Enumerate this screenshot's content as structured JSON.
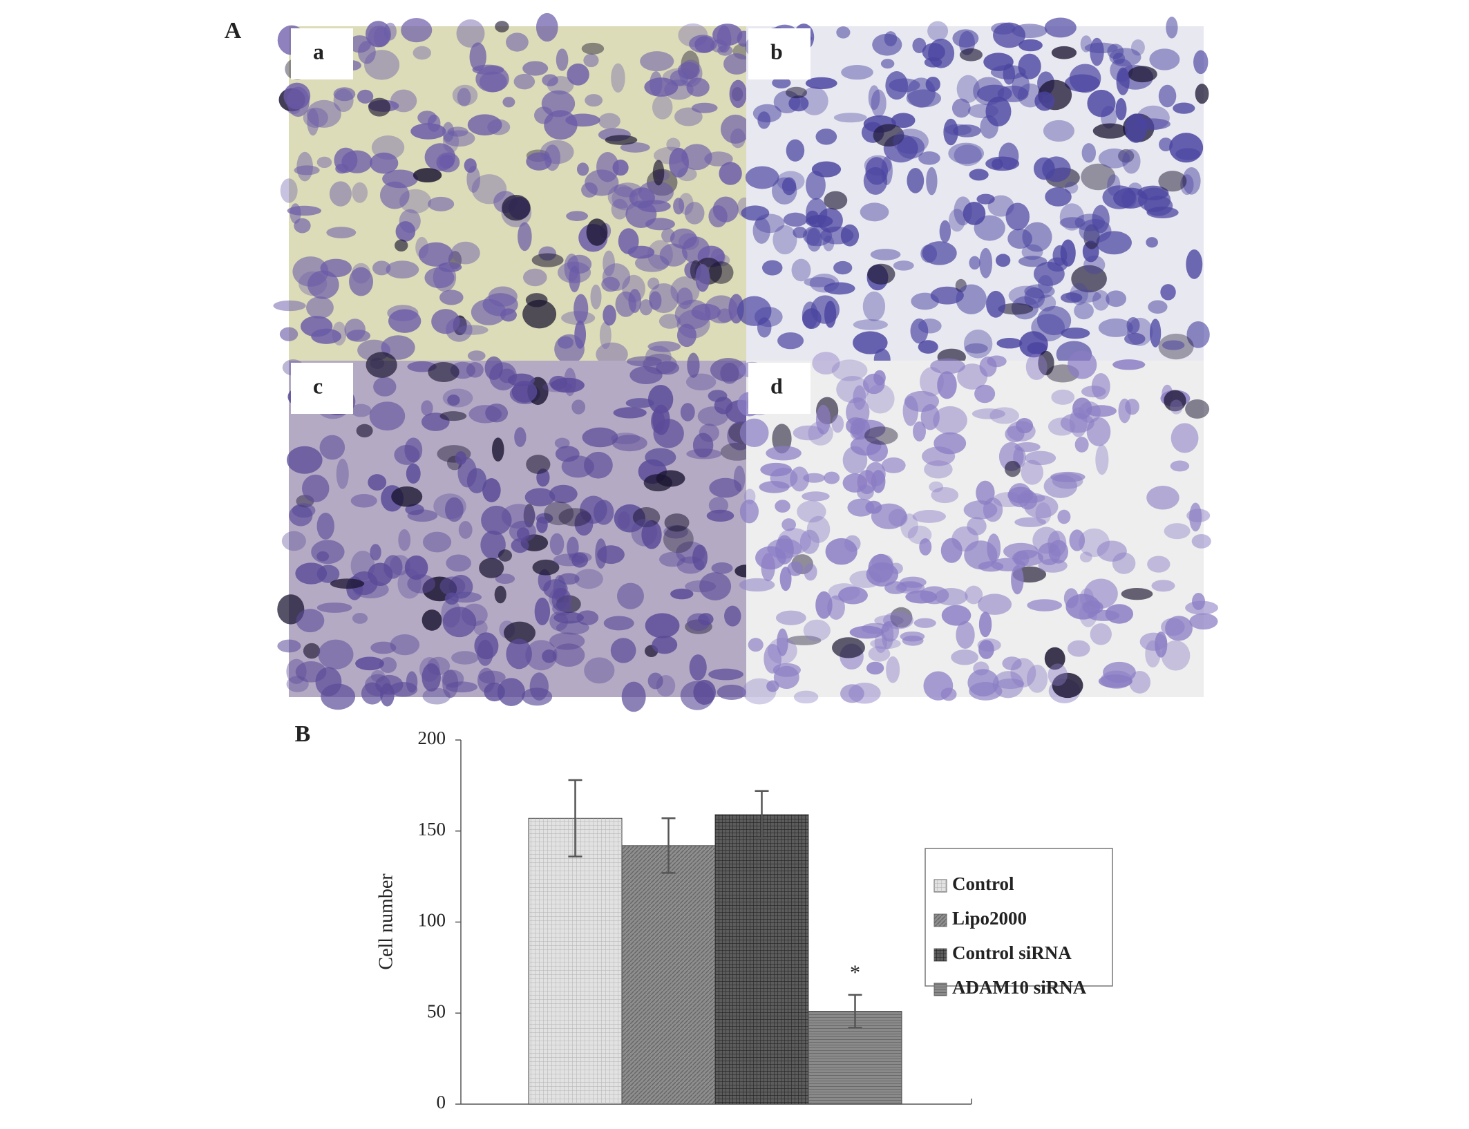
{
  "panels": {
    "A": "A",
    "B": "B",
    "images": [
      "a",
      "b",
      "c",
      "d"
    ]
  },
  "chart_data": {
    "type": "bar",
    "ylabel": "Cell number",
    "categories": [
      null
    ],
    "series": [
      {
        "name": "Control",
        "color": "#e2e2e2",
        "values": [
          157
        ],
        "errors": [
          21
        ]
      },
      {
        "name": "Lipo2000",
        "color": "#8e8e8e",
        "values": [
          142
        ],
        "errors": [
          15
        ]
      },
      {
        "name": "Control siRNA",
        "color": "#5c5c5c",
        "values": [
          159
        ],
        "errors": [
          13
        ]
      },
      {
        "name": "ADAM10 siRNA",
        "color": "#8a8a8a",
        "values": [
          51
        ],
        "errors": [
          9
        ],
        "annotation": "*"
      }
    ],
    "ylim": [
      0,
      200
    ],
    "yticks": [
      0,
      50,
      100,
      150,
      200
    ],
    "grid": false
  }
}
